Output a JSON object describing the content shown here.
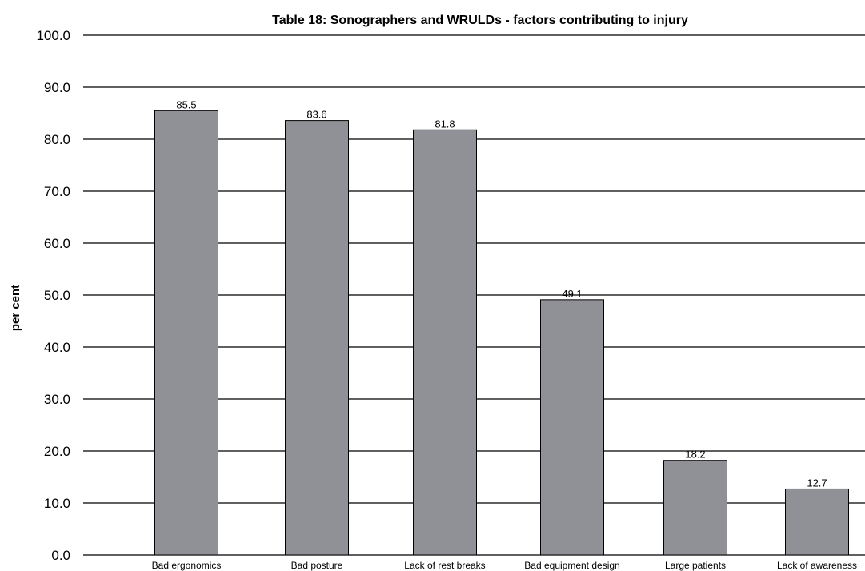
{
  "chart_data": {
    "type": "bar",
    "title": "Table 18: Sonographers and WRULDs - factors contributing to injury",
    "xlabel": "",
    "ylabel": "per cent",
    "ylim": [
      0,
      100
    ],
    "yticks": [
      "0.0",
      "10.0",
      "20.0",
      "30.0",
      "40.0",
      "50.0",
      "60.0",
      "70.0",
      "80.0",
      "90.0",
      "100.0"
    ],
    "categories": [
      "Bad ergonomics",
      "Bad posture",
      "Lack of rest breaks",
      "Bad equipment design",
      "Large patients",
      "Lack of awareness"
    ],
    "values": [
      85.5,
      83.6,
      81.8,
      49.1,
      18.2,
      12.7
    ],
    "value_labels": [
      "85.5",
      "83.6",
      "81.8",
      "49.1",
      "18.2",
      "12.7"
    ],
    "grid": true,
    "bar_color": "#909196",
    "bar_stroke": "#000000",
    "legend": "none"
  }
}
